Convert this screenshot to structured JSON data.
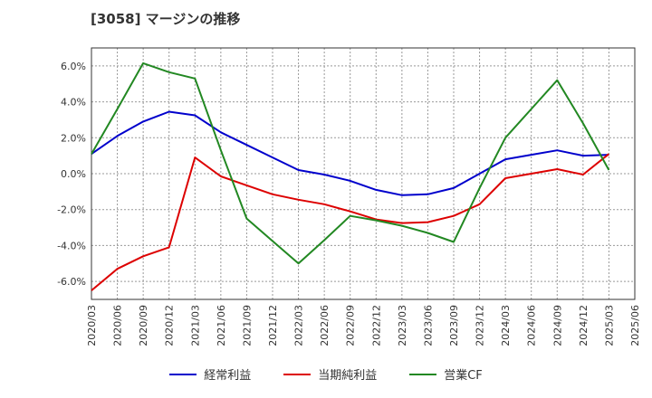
{
  "title": "[3058]  マージンの推移",
  "chart_data": {
    "type": "line",
    "x": [
      "2020/03",
      "2020/06",
      "2020/09",
      "2020/12",
      "2021/03",
      "2021/06",
      "2021/09",
      "2021/12",
      "2022/03",
      "2022/06",
      "2022/09",
      "2022/12",
      "2023/03",
      "2023/06",
      "2023/09",
      "2023/12",
      "2024/03",
      "2024/06",
      "2024/09",
      "2024/12",
      "2025/03",
      "2025/06"
    ],
    "y_ticks": [
      "6.0%",
      "4.0%",
      "2.0%",
      "0.0%",
      "-2.0%",
      "-4.0%",
      "-6.0%"
    ],
    "ylim": [
      -7.0,
      7.0
    ],
    "grid": true,
    "legend_position": "bottom",
    "series": [
      {
        "name": "経常利益",
        "color": "#0000cc",
        "values": [
          1.1,
          2.1,
          2.9,
          3.45,
          3.25,
          2.3,
          1.6,
          0.9,
          0.2,
          -0.05,
          -0.4,
          -0.9,
          -1.2,
          -1.15,
          -0.8,
          0.0,
          0.8,
          1.05,
          1.3,
          1.0,
          1.05,
          null
        ]
      },
      {
        "name": "当期純利益",
        "color": "#dd0000",
        "values": [
          -6.5,
          -5.3,
          -4.6,
          -4.1,
          0.9,
          -0.15,
          -0.65,
          -1.15,
          -1.45,
          -1.7,
          -2.1,
          -2.55,
          -2.75,
          -2.7,
          -2.35,
          -1.7,
          -0.25,
          0.0,
          0.25,
          -0.05,
          1.1,
          null
        ]
      },
      {
        "name": "営業CF",
        "color": "#228822",
        "values": [
          1.1,
          3.6,
          6.15,
          5.65,
          5.3,
          1.3,
          -2.5,
          -3.75,
          -5.0,
          -3.7,
          -2.35,
          -2.6,
          -2.9,
          -3.3,
          -3.8,
          -0.8,
          2.0,
          3.6,
          5.2,
          2.8,
          0.2,
          null
        ]
      }
    ]
  }
}
